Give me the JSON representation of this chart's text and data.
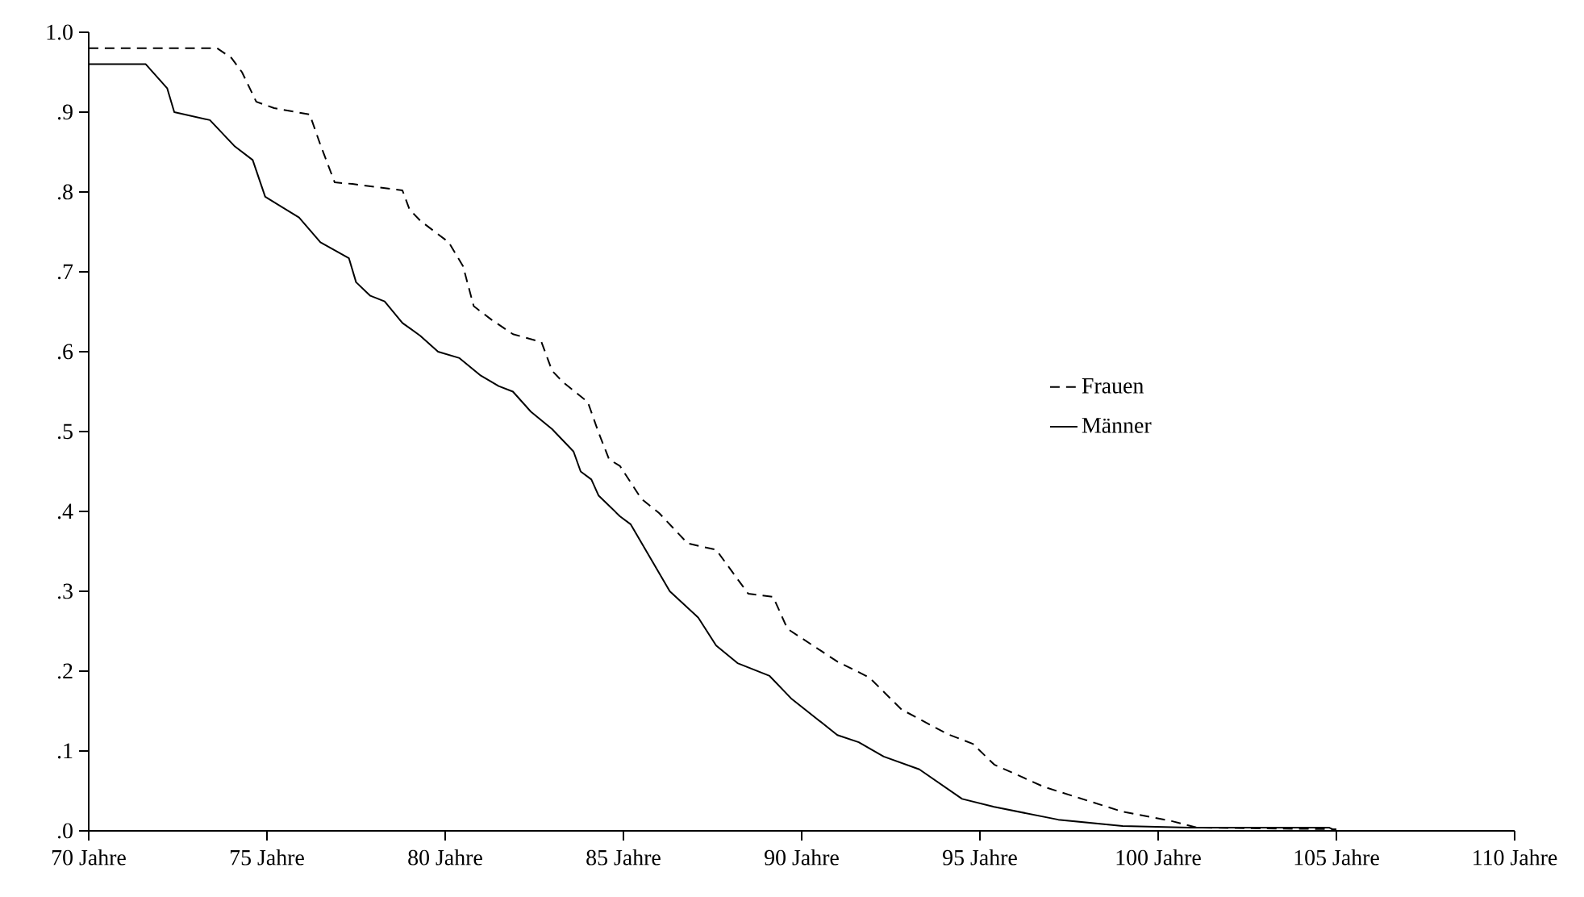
{
  "chart_data": {
    "type": "line",
    "xlim": [
      70,
      110
    ],
    "ylim": [
      0,
      1
    ],
    "xticks": [
      {
        "value": 70,
        "label": "70 Jahre"
      },
      {
        "value": 75,
        "label": "75 Jahre"
      },
      {
        "value": 80,
        "label": "80 Jahre"
      },
      {
        "value": 85,
        "label": "85 Jahre"
      },
      {
        "value": 90,
        "label": "90 Jahre"
      },
      {
        "value": 95,
        "label": "95 Jahre"
      },
      {
        "value": 100,
        "label": "100 Jahre"
      },
      {
        "value": 105,
        "label": "105 Jahre"
      },
      {
        "value": 110,
        "label": "110 Jahre"
      }
    ],
    "yticks": [
      {
        "value": 0,
        "label": ".0"
      },
      {
        "value": 0.1,
        "label": ".1"
      },
      {
        "value": 0.2,
        "label": ".2"
      },
      {
        "value": 0.3,
        "label": ".3"
      },
      {
        "value": 0.4,
        "label": ".4"
      },
      {
        "value": 0.5,
        "label": ".5"
      },
      {
        "value": 0.6,
        "label": ".6"
      },
      {
        "value": 0.7,
        "label": ".7"
      },
      {
        "value": 0.8,
        "label": ".8"
      },
      {
        "value": 0.9,
        "label": ".9"
      },
      {
        "value": 1,
        "label": "1.0"
      }
    ],
    "grid": false,
    "legend": "right",
    "marker": "none",
    "series": [
      {
        "name": "Frauen",
        "color": "#000000",
        "line_style": "dashed",
        "x": [
          70,
          73.6,
          74.0,
          74.3,
          74.7,
          75.2,
          76.2,
          76.5,
          76.9,
          77.4,
          78.8,
          79.0,
          79.3,
          80.1,
          80.5,
          80.8,
          81.3,
          81.9,
          82.7,
          83.0,
          83.3,
          84.0,
          84.3,
          84.6,
          84.9,
          85.5,
          86.0,
          86.8,
          87.6,
          88.5,
          89.2,
          89.6,
          91.0,
          91.9,
          92.8,
          94.1,
          94.8,
          95.4,
          96.8,
          99.0,
          100.4,
          101.1,
          105
        ],
        "values": [
          0.98,
          0.98,
          0.968,
          0.95,
          0.913,
          0.905,
          0.897,
          0.859,
          0.812,
          0.81,
          0.802,
          0.778,
          0.764,
          0.737,
          0.707,
          0.657,
          0.64,
          0.622,
          0.612,
          0.576,
          0.562,
          0.537,
          0.499,
          0.465,
          0.457,
          0.416,
          0.398,
          0.36,
          0.352,
          0.297,
          0.293,
          0.253,
          0.212,
          0.192,
          0.152,
          0.121,
          0.109,
          0.083,
          0.055,
          0.024,
          0.012,
          0.004,
          0.002
        ]
      },
      {
        "name": "Männer",
        "color": "#000000",
        "line_style": "solid",
        "x": [
          70,
          71.6,
          72.2,
          72.4,
          73.4,
          74.1,
          74.6,
          74.95,
          75.9,
          76.5,
          77.3,
          77.5,
          77.9,
          78.3,
          78.8,
          79.3,
          79.8,
          80.4,
          81.0,
          81.5,
          81.9,
          82.4,
          83.0,
          83.6,
          83.8,
          84.1,
          84.3,
          84.9,
          85.2,
          86.3,
          87.1,
          87.6,
          88.2,
          89.1,
          89.7,
          91.0,
          91.6,
          92.3,
          93.3,
          94.5,
          95.4,
          97.2,
          99.0,
          100.9,
          104.8,
          105
        ],
        "values": [
          0.96,
          0.96,
          0.93,
          0.9,
          0.89,
          0.857,
          0.84,
          0.794,
          0.768,
          0.737,
          0.717,
          0.687,
          0.67,
          0.663,
          0.636,
          0.62,
          0.6,
          0.592,
          0.57,
          0.557,
          0.55,
          0.525,
          0.503,
          0.475,
          0.45,
          0.44,
          0.42,
          0.394,
          0.384,
          0.3,
          0.267,
          0.232,
          0.21,
          0.194,
          0.166,
          0.12,
          0.111,
          0.093,
          0.077,
          0.04,
          0.03,
          0.014,
          0.006,
          0.004,
          0.004,
          0
        ]
      }
    ]
  }
}
